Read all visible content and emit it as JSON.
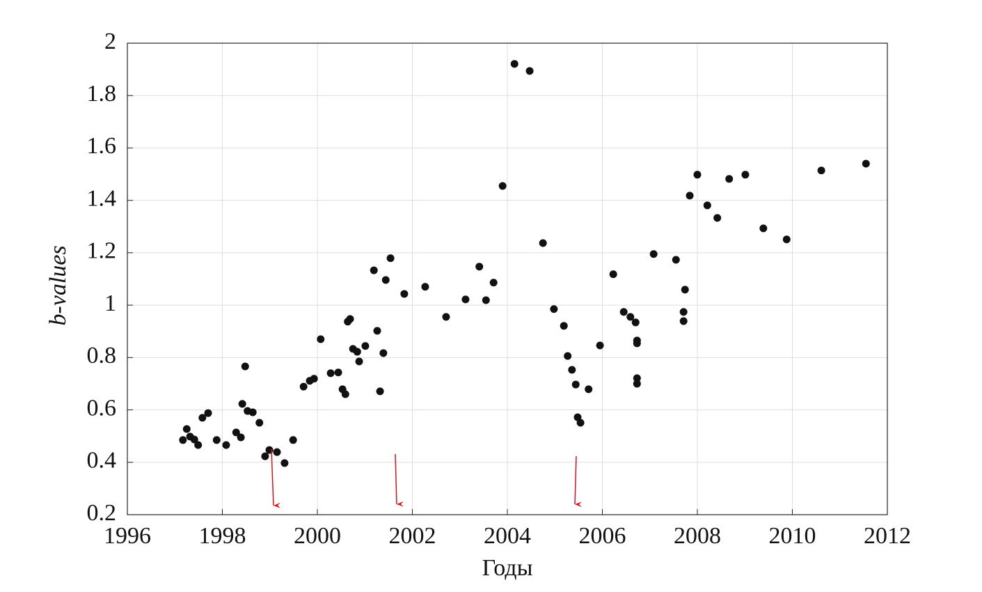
{
  "chart_data": {
    "type": "scatter",
    "x_label": "Годы",
    "y_label": "b-values",
    "series": [
      {
        "color": "#111111",
        "x": [
          1997.17,
          1997.25,
          1997.32,
          1997.41,
          1997.49,
          1997.58,
          1997.7,
          1997.88,
          1998.08,
          1998.29,
          1998.39,
          1998.42,
          1998.48,
          1998.53,
          1998.64,
          1998.78,
          1998.9,
          1998.99,
          1999.15,
          1999.31,
          1999.49,
          1999.71,
          1999.84,
          1999.93,
          2000.07,
          2000.28,
          2000.44,
          2000.53,
          2000.59,
          2000.64,
          2000.69,
          2000.75,
          2000.84,
          2000.88,
          2001.01,
          2001.19,
          2001.26,
          2001.32,
          2001.39,
          2001.44,
          2001.54,
          2001.83,
          2002.27,
          2002.71,
          2003.12,
          2003.41,
          2003.55,
          2003.71,
          2003.9,
          2004.15,
          2004.47,
          2004.75,
          2004.98,
          2005.19,
          2005.27,
          2005.36,
          2005.44,
          2005.48,
          2005.54,
          2005.71,
          2005.95,
          2006.23,
          2006.45,
          2006.59,
          2006.7,
          2006.73,
          2006.73,
          2006.73,
          2006.73,
          2007.08,
          2007.55,
          2007.71,
          2007.71,
          2007.74,
          2007.84,
          2008.0,
          2008.21,
          2008.42,
          2008.67,
          2009.01,
          2009.39,
          2009.88,
          2010.61,
          2011.55
        ],
        "values": [
          0.485,
          0.527,
          0.498,
          0.487,
          0.466,
          0.57,
          0.588,
          0.485,
          0.466,
          0.514,
          0.495,
          0.623,
          0.766,
          0.596,
          0.591,
          0.551,
          0.423,
          0.447,
          0.439,
          0.397,
          0.485,
          0.689,
          0.711,
          0.719,
          0.87,
          0.74,
          0.743,
          0.679,
          0.66,
          0.937,
          0.947,
          0.833,
          0.822,
          0.785,
          0.844,
          1.133,
          0.902,
          0.671,
          0.817,
          1.096,
          1.179,
          1.043,
          1.07,
          0.955,
          1.022,
          1.147,
          1.019,
          1.086,
          1.455,
          1.921,
          1.894,
          1.237,
          0.985,
          0.921,
          0.806,
          0.753,
          0.697,
          0.572,
          0.551,
          0.679,
          0.846,
          1.118,
          0.974,
          0.955,
          0.934,
          0.865,
          0.854,
          0.721,
          0.7,
          1.195,
          1.173,
          0.974,
          0.939,
          1.059,
          1.418,
          1.498,
          1.381,
          1.333,
          1.482,
          1.498,
          1.293,
          1.251,
          1.514,
          1.54
        ]
      }
    ],
    "xlim": [
      1996,
      2012
    ],
    "xticks": [
      1996,
      1998,
      2000,
      2002,
      2004,
      2006,
      2008,
      2010,
      2012
    ],
    "ylim": [
      0.2,
      2
    ],
    "yticks": [
      0.2,
      0.4,
      0.6,
      0.8,
      1,
      1.2,
      1.4,
      1.6,
      1.8,
      2
    ],
    "grid": true
  }
}
